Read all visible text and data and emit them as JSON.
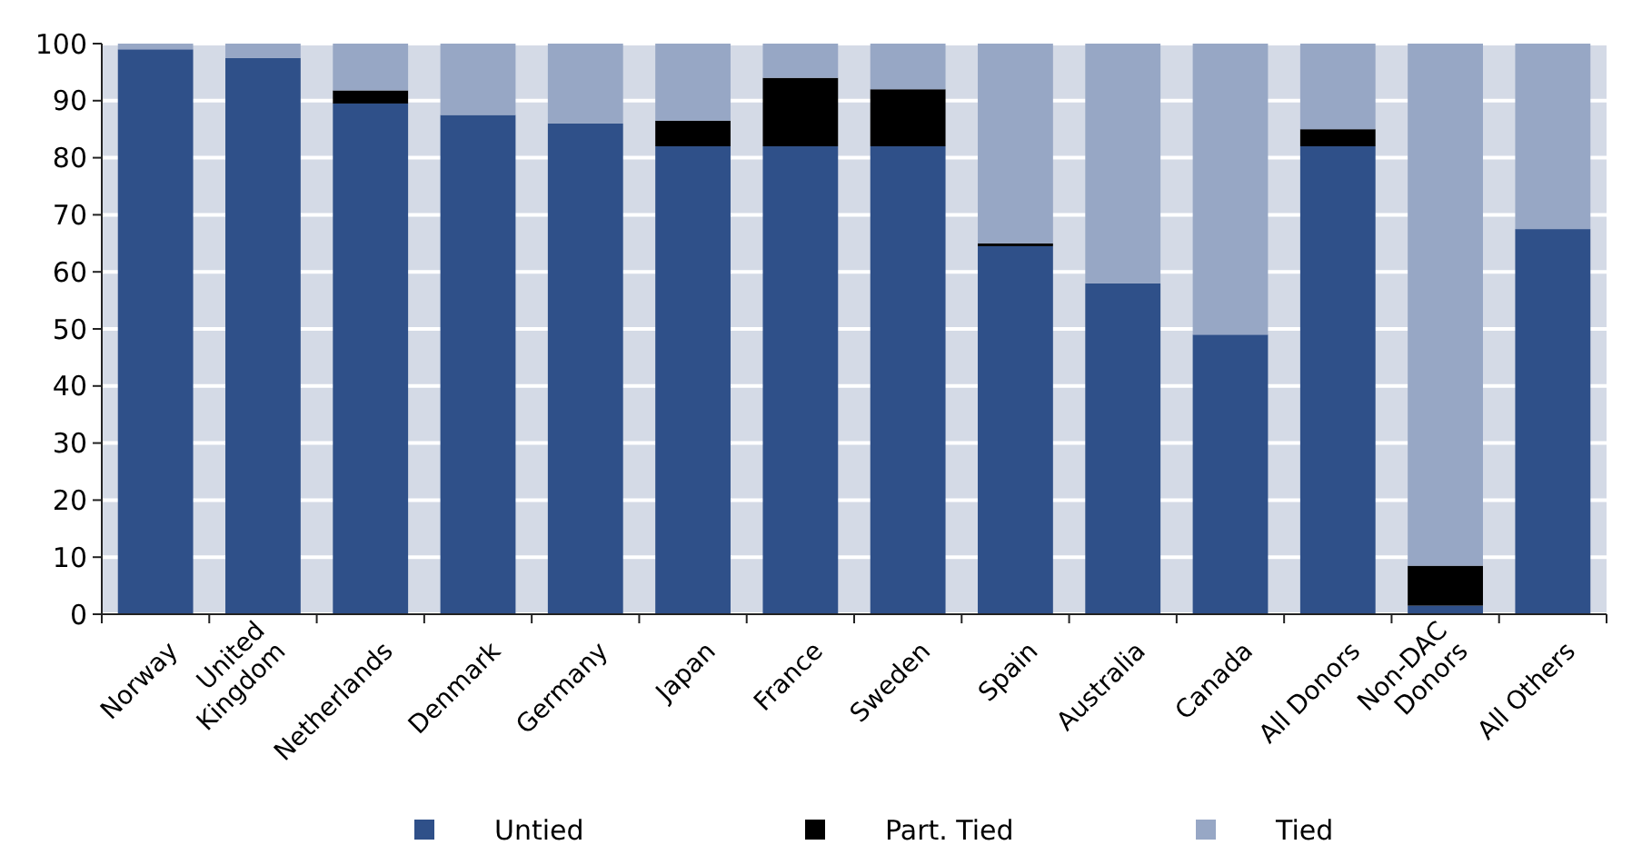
{
  "chart_data": {
    "type": "bar",
    "stacked": true,
    "categories": [
      "Norway",
      "United\nKingdom",
      "Netherlands",
      "Denmark",
      "Germany",
      "Japan",
      "France",
      "Sweden",
      "Spain",
      "Australia",
      "Canada",
      "All Donors",
      "Non-DAC\nDonors",
      "All Others"
    ],
    "series": [
      {
        "name": "Untied",
        "color": "#2f5089",
        "values": [
          99,
          97.5,
          89.5,
          87.5,
          86,
          82,
          82,
          82,
          64.5,
          58,
          49,
          82,
          1.5,
          67.5
        ]
      },
      {
        "name": "Part. Tied",
        "color": "#000000",
        "values": [
          0,
          0,
          2.3,
          0,
          0,
          4.5,
          12,
          10,
          0.5,
          0,
          0,
          3,
          7,
          0
        ]
      },
      {
        "name": "Tied",
        "color": "#97a7c5",
        "values": [
          1,
          2.5,
          8.2,
          12.5,
          14,
          13.5,
          6,
          8,
          35,
          42,
          51,
          15,
          91.5,
          32.5
        ]
      }
    ],
    "ylim": [
      0,
      100
    ],
    "yticks": [
      0,
      10,
      20,
      30,
      40,
      50,
      60,
      70,
      80,
      90,
      100
    ],
    "grid": "y",
    "legend": "bottom"
  }
}
